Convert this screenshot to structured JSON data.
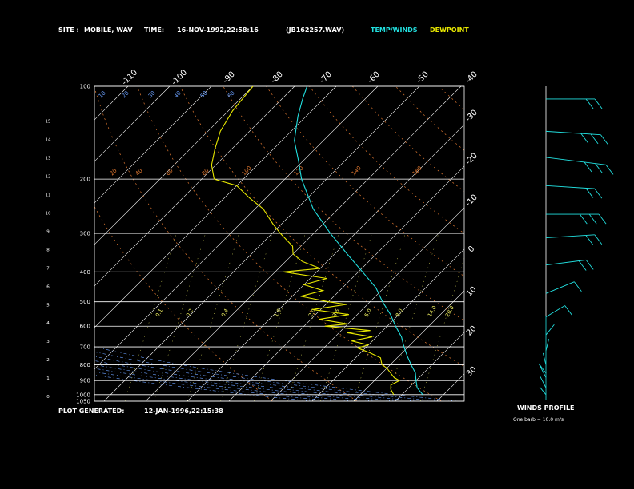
{
  "header": {
    "site_label": "SITE :",
    "site_value": "MOBILE, WAV",
    "time_label": "TIME:",
    "time_value": "16-NOV-1992,22:58:16",
    "file_value": "(JB162257.WAV)",
    "temp_winds_label": "TEMP/WINDS",
    "dewpoint_label": "DEWPOINT"
  },
  "footer": {
    "generated_label": "PLOT GENERATED:",
    "generated_value": "12-JAN-1996,22:15:38"
  },
  "winds_panel": {
    "title": "WINDS PROFILE",
    "note": "One barb = 10.0 m/s"
  },
  "colors": {
    "background": "#000000",
    "temperature": "#22e0e0",
    "dewpoint": "#e8e800",
    "isobar": "#ffffff",
    "isotherm": "#ffffff",
    "dry_adiabat": "#e07830",
    "moist_adiabat": "#6aa0ff",
    "mixing_ratio": "#ffff66",
    "winds": "#22e0e0"
  },
  "chart_data": {
    "type": "line",
    "pressure_ticks": [
      "100",
      "200",
      "300",
      "400",
      "500",
      "600",
      "700",
      "800",
      "900",
      "1000",
      "1050"
    ],
    "km_ticks": [
      "15",
      "14",
      "13",
      "12",
      "11",
      "10",
      "9",
      "8",
      "7",
      "6",
      "5",
      "4",
      "3",
      "2",
      "1",
      "0"
    ],
    "top_temp_ticks": [
      "-110",
      "-100",
      "-90",
      "-80",
      "-70",
      "-60",
      "-50",
      "-40"
    ],
    "right_temp_ticks": [
      "-30",
      "-20",
      "-10",
      "0",
      "10",
      "20",
      "30"
    ],
    "dry_adiabat_labels": [
      "20",
      "40",
      "60",
      "80",
      "100",
      "120",
      "140",
      "160"
    ],
    "moist_adiabat_labels": [
      "10",
      "20",
      "30",
      "40",
      "50",
      "60"
    ],
    "mixing_ratio_labels": [
      "0.1",
      "0.2",
      "0.4",
      "1.0",
      "2.0",
      "3.5",
      "5.0",
      "8.0",
      "14.0",
      "20.0"
    ],
    "series": [
      {
        "name": "TEMP/WINDS",
        "points": [
          [
            1000,
            25
          ],
          [
            950,
            22
          ],
          [
            900,
            20
          ],
          [
            850,
            18
          ],
          [
            800,
            15
          ],
          [
            750,
            12
          ],
          [
            700,
            9
          ],
          [
            650,
            6
          ],
          [
            600,
            2
          ],
          [
            550,
            -2
          ],
          [
            500,
            -7
          ],
          [
            450,
            -12
          ],
          [
            400,
            -19
          ],
          [
            350,
            -27
          ],
          [
            300,
            -36
          ],
          [
            250,
            -46
          ],
          [
            200,
            -56
          ],
          [
            175,
            -61
          ],
          [
            150,
            -67
          ],
          [
            125,
            -72
          ],
          [
            110,
            -75
          ],
          [
            100,
            -77
          ]
        ]
      },
      {
        "name": "DEWPOINT",
        "points": [
          [
            1000,
            18
          ],
          [
            960,
            16
          ],
          [
            930,
            15
          ],
          [
            900,
            16
          ],
          [
            880,
            14
          ],
          [
            850,
            12
          ],
          [
            820,
            10
          ],
          [
            800,
            8
          ],
          [
            760,
            6
          ],
          [
            730,
            2
          ],
          [
            705,
            -2
          ],
          [
            690,
            0
          ],
          [
            670,
            -5
          ],
          [
            650,
            -1
          ],
          [
            630,
            -8
          ],
          [
            620,
            -3
          ],
          [
            600,
            -15
          ],
          [
            590,
            -10
          ],
          [
            570,
            -18
          ],
          [
            550,
            -12
          ],
          [
            530,
            -22
          ],
          [
            510,
            -15
          ],
          [
            500,
            -20
          ],
          [
            480,
            -28
          ],
          [
            460,
            -24
          ],
          [
            440,
            -30
          ],
          [
            420,
            -26
          ],
          [
            400,
            -38
          ],
          [
            390,
            -30
          ],
          [
            370,
            -36
          ],
          [
            350,
            -40
          ],
          [
            330,
            -42
          ],
          [
            300,
            -48
          ],
          [
            280,
            -52
          ],
          [
            250,
            -58
          ],
          [
            230,
            -64
          ],
          [
            210,
            -70
          ],
          [
            200,
            -77
          ],
          [
            180,
            -81
          ],
          [
            160,
            -84
          ],
          [
            140,
            -87
          ],
          [
            120,
            -89
          ],
          [
            100,
            -90
          ]
        ]
      }
    ],
    "wind_profile": [
      {
        "p": 110,
        "dir": 270,
        "speed": 22
      },
      {
        "p": 140,
        "dir": 265,
        "speed": 25
      },
      {
        "p": 170,
        "dir": 260,
        "speed": 28
      },
      {
        "p": 210,
        "dir": 265,
        "speed": 22
      },
      {
        "p": 260,
        "dir": 270,
        "speed": 24
      },
      {
        "p": 310,
        "dir": 275,
        "speed": 22
      },
      {
        "p": 380,
        "dir": 280,
        "speed": 18
      },
      {
        "p": 470,
        "dir": 300,
        "speed": 14
      },
      {
        "p": 560,
        "dir": 310,
        "speed": 10
      },
      {
        "p": 640,
        "dir": 330,
        "speed": 6
      },
      {
        "p": 720,
        "dir": 350,
        "speed": 6
      },
      {
        "p": 800,
        "dir": 10,
        "speed": 6
      },
      {
        "p": 880,
        "dir": 20,
        "speed": 8
      },
      {
        "p": 950,
        "dir": 20,
        "speed": 6
      },
      {
        "p": 1000,
        "dir": 30,
        "speed": 4
      }
    ]
  }
}
